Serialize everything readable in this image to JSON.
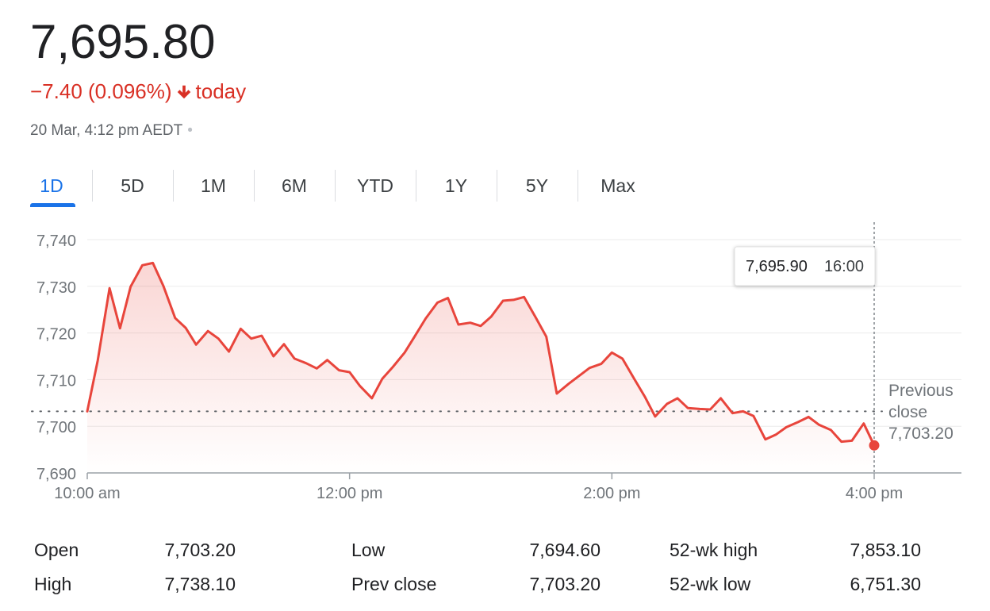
{
  "quote": {
    "price": "7,695.80",
    "change": "−7.40 (0.096%)",
    "direction_label": "today",
    "direction_icon": "arrow-down-icon",
    "timestamp": "20 Mar, 4:12 pm AEDT",
    "separator": "•",
    "colors": {
      "negative": "#d93025",
      "accent": "#1a73e8"
    }
  },
  "tabs": [
    {
      "label": "1D",
      "active": true
    },
    {
      "label": "5D",
      "active": false
    },
    {
      "label": "1M",
      "active": false
    },
    {
      "label": "6M",
      "active": false
    },
    {
      "label": "YTD",
      "active": false
    },
    {
      "label": "1Y",
      "active": false
    },
    {
      "label": "5Y",
      "active": false
    },
    {
      "label": "Max",
      "active": false
    }
  ],
  "chart_data": {
    "type": "area",
    "x_unit": "time of day (hours, 10 = 10:00 am)",
    "xlim": [
      10,
      16.7
    ],
    "ylim": [
      7690,
      7740
    ],
    "yticks": [
      {
        "value": 7740,
        "label": "7,740"
      },
      {
        "value": 7730,
        "label": "7,730"
      },
      {
        "value": 7720,
        "label": "7,720"
      },
      {
        "value": 7710,
        "label": "7,710"
      },
      {
        "value": 7700,
        "label": "7,700"
      },
      {
        "value": 7690,
        "label": "7,690"
      }
    ],
    "xticks": [
      {
        "value": 10,
        "label": "10:00 am"
      },
      {
        "value": 12,
        "label": "12:00 pm"
      },
      {
        "value": 14,
        "label": "2:00 pm"
      },
      {
        "value": 16,
        "label": "4:00 pm"
      }
    ],
    "grid": true,
    "color": "#e8453c",
    "reference_line": {
      "value": 7703.2,
      "label_lines": [
        "Previous",
        "close",
        "7,703.20"
      ]
    },
    "tooltip": {
      "x": 16,
      "value_label": "7,695.90",
      "time_label": "16:00"
    },
    "last_point": {
      "x": 16,
      "y": 7695.9
    },
    "series": [
      {
        "x": [
          10.0,
          10.08,
          10.17,
          10.25,
          10.33,
          10.42,
          10.5,
          10.58,
          10.67,
          10.75,
          10.83,
          10.92,
          11.0,
          11.08,
          11.17,
          11.25,
          11.33,
          11.42,
          11.5,
          11.58,
          11.67,
          11.75,
          11.83,
          11.92,
          12.0,
          12.08,
          12.17,
          12.25,
          12.33,
          12.42,
          12.5,
          12.58,
          12.67,
          12.75,
          12.83,
          12.92,
          13.0,
          13.08,
          13.17,
          13.25,
          13.33,
          13.42,
          13.5,
          13.58,
          13.67,
          13.75,
          13.83,
          13.92,
          14.0,
          14.08,
          14.17,
          14.25,
          14.33,
          14.42,
          14.5,
          14.58,
          14.67,
          14.75,
          14.83,
          14.92,
          15.0,
          15.08,
          15.17,
          15.25,
          15.33,
          15.42,
          15.5,
          15.58,
          15.67,
          15.75,
          15.83,
          15.92,
          16.0
        ],
        "y": [
          7703.2,
          7714.1,
          7729.6,
          7721.0,
          7729.9,
          7734.5,
          7735.0,
          7730.1,
          7723.2,
          7721.1,
          7717.5,
          7720.4,
          7718.8,
          7716.0,
          7720.9,
          7718.8,
          7719.4,
          7715.0,
          7717.6,
          7714.5,
          7713.5,
          7712.4,
          7714.2,
          7712.0,
          7711.6,
          7708.6,
          7706.0,
          7710.2,
          7712.7,
          7715.8,
          7719.4,
          7723.1,
          7726.5,
          7727.5,
          7721.8,
          7722.2,
          7721.5,
          7723.5,
          7726.9,
          7727.1,
          7727.7,
          7723.3,
          7719.2,
          7707.0,
          7709.1,
          7710.8,
          7712.5,
          7713.4,
          7715.8,
          7714.5,
          7710.2,
          7706.4,
          7702.1,
          7704.8,
          7706.0,
          7703.9,
          7703.7,
          7703.6,
          7706.0,
          7702.8,
          7703.2,
          7702.2,
          7697.2,
          7698.2,
          7699.8,
          7700.9,
          7702.0,
          7700.3,
          7699.2,
          7696.7,
          7696.9,
          7700.6,
          7695.9
        ]
      }
    ]
  },
  "stats": [
    {
      "label": "Open",
      "value": "7,703.20"
    },
    {
      "label": "High",
      "value": "7,738.10"
    },
    {
      "label": "Low",
      "value": "7,694.60"
    },
    {
      "label": "Prev close",
      "value": "7,703.20"
    },
    {
      "label": "52-wk high",
      "value": "7,853.10"
    },
    {
      "label": "52-wk low",
      "value": "6,751.30"
    }
  ]
}
